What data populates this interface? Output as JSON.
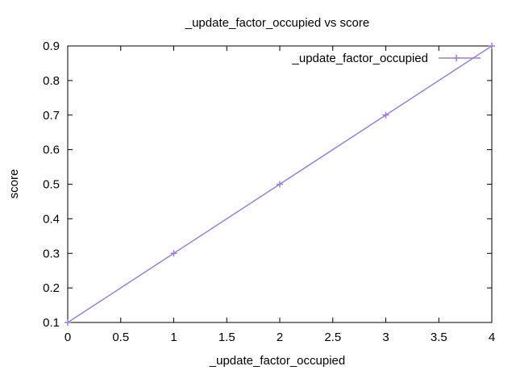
{
  "chart_data": {
    "type": "line",
    "title": "_update_factor_occupied vs score",
    "xlabel": "_update_factor_occupied",
    "ylabel": "score",
    "xlim": [
      0,
      4
    ],
    "ylim": [
      0.1,
      0.9
    ],
    "x_ticks": [
      "0",
      "0.5",
      "1",
      "1.5",
      "2",
      "2.5",
      "3",
      "3.5",
      "4"
    ],
    "y_ticks": [
      "0.1",
      "0.2",
      "0.3",
      "0.4",
      "0.5",
      "0.6",
      "0.7",
      "0.8",
      "0.9"
    ],
    "grid": false,
    "legend_position": "top-right",
    "series": [
      {
        "name": "_update_factor_occupied",
        "color": "#9b7fe0",
        "x": [
          0,
          1,
          2,
          3,
          4
        ],
        "y": [
          0.1,
          0.3,
          0.5,
          0.7,
          0.9
        ]
      }
    ]
  }
}
